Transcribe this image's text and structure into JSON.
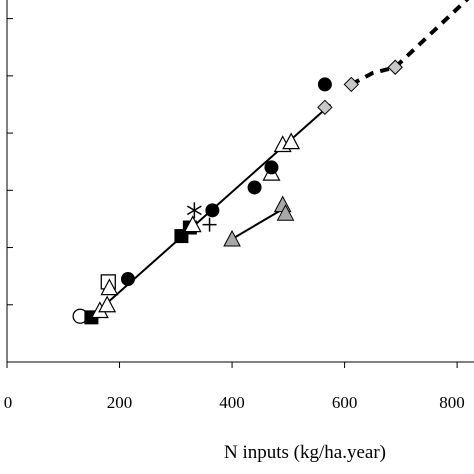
{
  "chart_data": {
    "type": "scatter",
    "title": "",
    "xlabel": "N inputs (kg/ha.year)",
    "ylabel": "",
    "xlim": [
      0,
      830
    ],
    "x_ticks": [
      0,
      200,
      400,
      600,
      800
    ],
    "x_tick_labels": [
      "0",
      "200",
      "400",
      "600",
      "800"
    ],
    "ylim": [
      0,
      650
    ],
    "y_ticks": [
      0,
      100,
      200,
      300,
      400,
      500,
      600
    ],
    "grid": false,
    "legend": "none",
    "series": [
      {
        "marker": "open-circle",
        "points": [
          [
            130,
            80
          ]
        ]
      },
      {
        "marker": "filled-square",
        "points": [
          [
            150,
            78
          ],
          [
            310,
            220
          ],
          [
            325,
            235
          ]
        ]
      },
      {
        "marker": "open-square",
        "points": [
          [
            180,
            140
          ]
        ]
      },
      {
        "marker": "open-triangle",
        "points": [
          [
            165,
            90
          ],
          [
            178,
            100
          ],
          [
            182,
            130
          ],
          [
            330,
            240
          ],
          [
            470,
            330
          ],
          [
            490,
            380
          ],
          [
            505,
            385
          ]
        ]
      },
      {
        "marker": "filled-circle",
        "points": [
          [
            215,
            145
          ],
          [
            365,
            265
          ],
          [
            440,
            305
          ],
          [
            470,
            340
          ],
          [
            565,
            485
          ]
        ]
      },
      {
        "marker": "star",
        "points": [
          [
            333,
            265
          ]
        ]
      },
      {
        "marker": "plus",
        "points": [
          [
            360,
            240
          ]
        ]
      },
      {
        "marker": "gray-triangle",
        "points": [
          [
            400,
            215
          ],
          [
            490,
            275
          ],
          [
            495,
            260
          ]
        ]
      },
      {
        "marker": "gray-diamond",
        "points": [
          [
            565,
            445
          ],
          [
            612,
            485
          ],
          [
            690,
            515
          ]
        ]
      }
    ],
    "lines": [
      {
        "style": "solid",
        "points": [
          [
            140,
            70
          ],
          [
            575,
            450
          ]
        ]
      },
      {
        "style": "solid",
        "points": [
          [
            400,
            215
          ],
          [
            495,
            270
          ]
        ]
      },
      {
        "style": "dashed",
        "points": [
          [
            612,
            485
          ],
          [
            650,
            505
          ],
          [
            690,
            515
          ],
          [
            830,
            645
          ]
        ]
      }
    ]
  },
  "colors": {
    "ink": "#000000",
    "marker_gray": "#a8a8a8",
    "diamond_gray": "#c8c8c8",
    "background": "#ffffff"
  }
}
